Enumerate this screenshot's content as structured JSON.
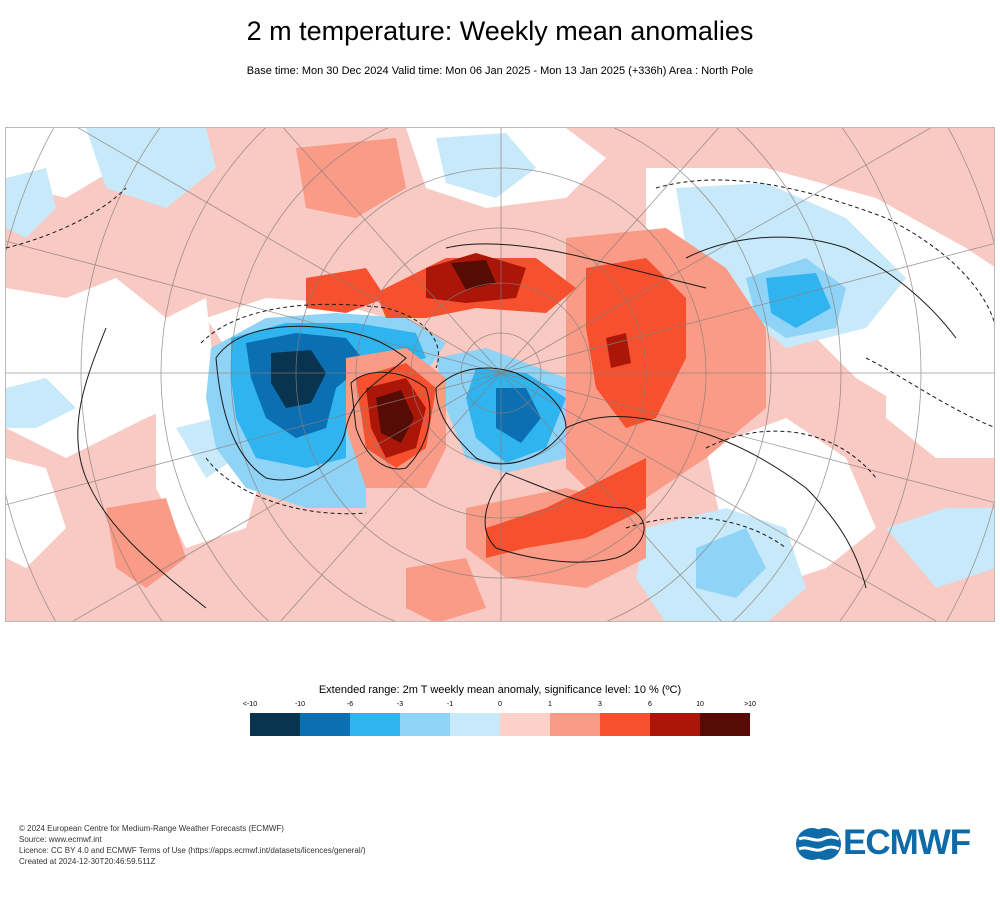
{
  "title": "2 m temperature: Weekly mean anomalies",
  "subtitle": "Base time: Mon 30 Dec 2024 Valid time: Mon 06 Jan 2025 - Mon 13 Jan 2025 (+336h) Area : North Pole",
  "map": {
    "projection": "north polar stereographic",
    "area": "North Pole"
  },
  "legend": {
    "title": "Extended range: 2m T weekly mean anomaly, significance level: 10 % (ºC)",
    "ticks": [
      "<-10",
      "-10",
      "-6",
      "-3",
      "-1",
      "0",
      "1",
      "3",
      "6",
      "10",
      ">10"
    ],
    "colors": [
      "#08344f",
      "#0a6fb3",
      "#2fb4f0",
      "#8fd3f7",
      "#c8e9f9",
      "#fdd0c8",
      "#f99b86",
      "#f6502e",
      "#ab1608",
      "#560b05"
    ]
  },
  "footer": {
    "line1": "© 2024 European Centre for Medium-Range Weather Forecasts (ECMWF)",
    "line2": "Source: www.ecmwf.int",
    "line3": "Licence: CC BY 4.0 and ECMWF Terms of Use (https://apps.ecmwf.int/datasets/licences/general/)",
    "line4": "Created at 2024-12-30T20:46:59.511Z"
  },
  "logo": {
    "text": "ECMWF",
    "color": "#0f6aa8"
  }
}
